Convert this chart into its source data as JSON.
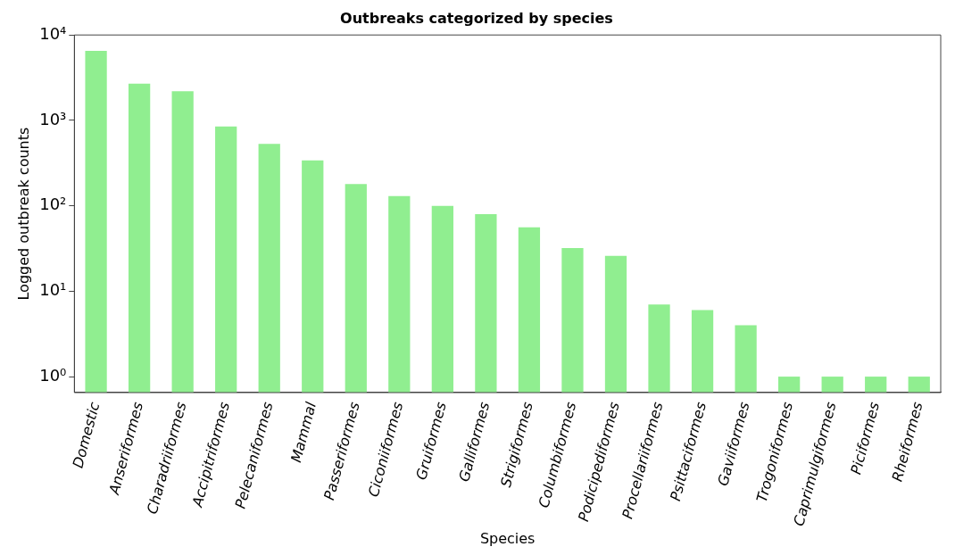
{
  "chart_data": {
    "type": "bar",
    "title": "Outbreaks categorized by species",
    "xlabel": "Species",
    "ylabel": "Logged outbreak counts",
    "categories": [
      "Domestic",
      "Anseriformes",
      "Charadriiformes",
      "Accipitriformes",
      "Pelecaniformes",
      "Mammal",
      "Passeriformes",
      "Ciconiiformes",
      "Gruiformes",
      "Galliformes",
      "Strigiformes",
      "Columbiformes",
      "Podicipediformes",
      "Procellariiformes",
      "Psittaciformes",
      "Gaviiformes",
      "Trogoniformes",
      "Caprimulgiformes",
      "Piciformes",
      "Rheiformes"
    ],
    "values": [
      6500,
      2700,
      2200,
      850,
      530,
      340,
      180,
      130,
      100,
      80,
      56,
      32,
      26,
      7,
      6,
      4,
      1,
      1,
      1,
      1
    ],
    "color": "#90ee90",
    "log": "y",
    "ylim": [
      0.65,
      10000
    ],
    "yticks": [
      {
        "value": 1,
        "label": "10⁰"
      },
      {
        "value": 10,
        "label": "10¹"
      },
      {
        "value": 100,
        "label": "10²"
      },
      {
        "value": 1000,
        "label": "10³"
      },
      {
        "value": 10000,
        "label": "10⁴"
      }
    ],
    "grid": false,
    "legend": false
  }
}
